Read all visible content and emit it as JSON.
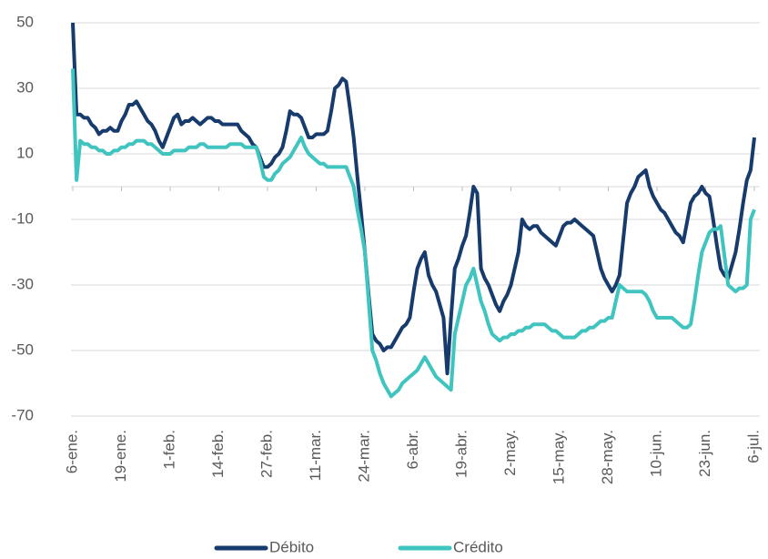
{
  "chart_data": {
    "type": "line",
    "categories": [
      "6-ene.",
      null,
      null,
      null,
      null,
      null,
      null,
      null,
      null,
      null,
      null,
      null,
      null,
      "19-ene.",
      null,
      null,
      null,
      null,
      null,
      null,
      null,
      null,
      null,
      null,
      null,
      null,
      "1-feb.",
      null,
      null,
      null,
      null,
      null,
      null,
      null,
      null,
      null,
      null,
      null,
      null,
      "14-feb.",
      null,
      null,
      null,
      null,
      null,
      null,
      null,
      null,
      null,
      null,
      null,
      null,
      "27-feb.",
      null,
      null,
      null,
      null,
      null,
      null,
      null,
      null,
      null,
      null,
      null,
      null,
      "11-mar.",
      null,
      null,
      null,
      null,
      null,
      null,
      null,
      null,
      null,
      null,
      null,
      null,
      "24-mar.",
      null,
      null,
      null,
      null,
      null,
      null,
      null,
      null,
      null,
      null,
      null,
      null,
      "6-abr.",
      null,
      null,
      null,
      null,
      null,
      null,
      null,
      null,
      null,
      null,
      null,
      null,
      "19-abr.",
      null,
      null,
      null,
      null,
      null,
      null,
      null,
      null,
      null,
      null,
      null,
      null,
      "2-may.",
      null,
      null,
      null,
      null,
      null,
      null,
      null,
      null,
      null,
      null,
      null,
      null,
      "15-may.",
      null,
      null,
      null,
      null,
      null,
      null,
      null,
      null,
      null,
      null,
      null,
      null,
      "28-may.",
      null,
      null,
      null,
      null,
      null,
      null,
      null,
      null,
      null,
      null,
      null,
      null,
      "10-jun.",
      null,
      null,
      null,
      null,
      null,
      null,
      null,
      null,
      null,
      null,
      null,
      null,
      "23-jun.",
      null,
      null,
      null,
      null,
      null,
      null,
      null,
      null,
      null,
      null,
      null,
      null,
      "6-jul."
    ],
    "series": [
      {
        "name": "Débito",
        "color": "#173b6c",
        "values": [
          50,
          22,
          22,
          21,
          21,
          19,
          18,
          16,
          17,
          17,
          18,
          17,
          17,
          20,
          22,
          25,
          25,
          26,
          24,
          22,
          20,
          19,
          17,
          14,
          12,
          15,
          18,
          21,
          22,
          19,
          20,
          20,
          21,
          20,
          19,
          20,
          21,
          21,
          20,
          20,
          19,
          19,
          19,
          19,
          19,
          17,
          16,
          15,
          13,
          12,
          9,
          6,
          6,
          7,
          9,
          10,
          12,
          17,
          23,
          22,
          22,
          21,
          18,
          15,
          15,
          16,
          16,
          16,
          17,
          23,
          30,
          31,
          33,
          32,
          24,
          15,
          3,
          -8,
          -20,
          -33,
          -45,
          -47,
          -48,
          -50,
          -49,
          -49,
          -47,
          -45,
          -43,
          -42,
          -40,
          -32,
          -25,
          -22,
          -20,
          -27,
          -30,
          -32,
          -36,
          -40,
          -57,
          -40,
          -25,
          -22,
          -18,
          -15,
          -8,
          0,
          -2,
          -25,
          -28,
          -30,
          -33,
          -36,
          -38,
          -35,
          -33,
          -30,
          -25,
          -20,
          -10,
          -12,
          -13,
          -12,
          -12,
          -14,
          -15,
          -16,
          -17,
          -18,
          -15,
          -12,
          -11,
          -11,
          -10,
          -11,
          -12,
          -13,
          -14,
          -15,
          -20,
          -25,
          -28,
          -30,
          -32,
          -30,
          -27,
          -16,
          -5,
          -2,
          0,
          3,
          4,
          5,
          0,
          -3,
          -5,
          -7,
          -8,
          -10,
          -12,
          -14,
          -15,
          -17,
          -11,
          -5,
          -3,
          -2,
          0,
          -2,
          -3,
          -10,
          -18,
          -25,
          -27,
          -28,
          -24,
          -20,
          -13,
          -5,
          2,
          5,
          15
        ]
      },
      {
        "name": "Crédito",
        "color": "#40c4c0",
        "values": [
          36,
          2,
          14,
          13,
          13,
          12,
          12,
          11,
          11,
          10,
          10,
          11,
          11,
          12,
          12,
          13,
          13,
          14,
          14,
          14,
          13,
          13,
          12,
          11,
          10,
          10,
          10,
          11,
          11,
          11,
          11,
          12,
          12,
          12,
          13,
          13,
          12,
          12,
          12,
          12,
          12,
          12,
          13,
          13,
          13,
          13,
          12,
          12,
          12,
          12,
          8,
          3,
          2,
          2,
          4,
          5,
          7,
          8,
          9,
          11,
          13,
          15,
          12,
          10,
          9,
          8,
          7,
          7,
          6,
          6,
          6,
          6,
          6,
          6,
          3,
          0,
          -7,
          -13,
          -20,
          -35,
          -50,
          -53,
          -57,
          -60,
          -62,
          -64,
          -63,
          -62,
          -60,
          -59,
          -58,
          -57,
          -56,
          -54,
          -52,
          -54,
          -56,
          -58,
          -59,
          -60,
          -61,
          -62,
          -45,
          -40,
          -35,
          -30,
          -28,
          -25,
          -30,
          -35,
          -38,
          -42,
          -45,
          -46,
          -47,
          -46,
          -46,
          -45,
          -45,
          -44,
          -44,
          -43,
          -43,
          -42,
          -42,
          -42,
          -42,
          -43,
          -44,
          -44,
          -45,
          -46,
          -46,
          -46,
          -46,
          -45,
          -44,
          -44,
          -43,
          -43,
          -42,
          -41,
          -41,
          -40,
          -40,
          -35,
          -30,
          -31,
          -32,
          -32,
          -32,
          -32,
          -32,
          -33,
          -35,
          -38,
          -40,
          -40,
          -40,
          -40,
          -40,
          -41,
          -42,
          -43,
          -43,
          -42,
          -35,
          -27,
          -20,
          -17,
          -14,
          -13,
          -13,
          -12,
          -21,
          -30,
          -31,
          -32,
          -31,
          -31,
          -30,
          -10,
          -7
        ]
      }
    ],
    "ylim": [
      -70,
      50
    ],
    "yticks": [
      -70,
      -50,
      -30,
      -10,
      10,
      30,
      50
    ],
    "grid": true,
    "legend": "bottom"
  }
}
